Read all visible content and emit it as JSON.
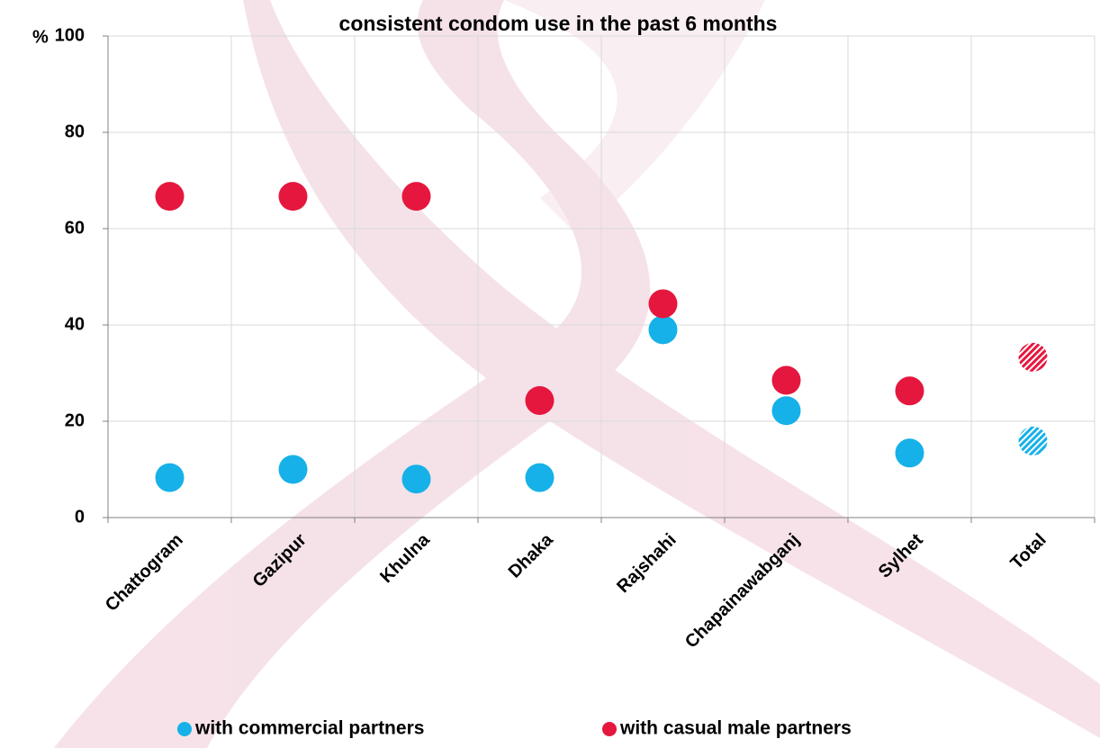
{
  "chart_data": {
    "type": "scatter",
    "title": "consistent condom use in the past 6 months",
    "y_label": "%",
    "categories": [
      "Chattogram",
      "Gazipur",
      "Khulna",
      "Dhaka",
      "Rajshahi",
      "Chapainawabganj",
      "Sylhet",
      "Total"
    ],
    "series": [
      {
        "name": "with commercial partners",
        "color": "#16b1e8",
        "values": [
          8.3,
          10,
          8,
          8.3,
          39,
          22.2,
          13.4,
          15.9
        ]
      },
      {
        "name": "with casual male partners",
        "color": "#e5173f",
        "values": [
          66.7,
          66.7,
          66.7,
          24.3,
          44.4,
          28.5,
          26.3,
          33.3
        ]
      }
    ],
    "ylim": [
      0,
      100
    ],
    "yticks": [
      0,
      20,
      40,
      60,
      80,
      100
    ],
    "grid": true
  }
}
